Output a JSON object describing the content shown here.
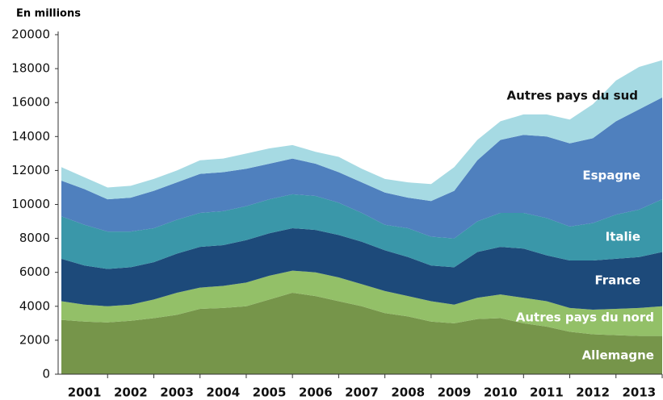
{
  "chart_data": {
    "type": "stacked_area",
    "y_label": "En millions",
    "x": [
      2001,
      2001.5,
      2002,
      2002.5,
      2003,
      2003.5,
      2004,
      2004.5,
      2005,
      2005.5,
      2006,
      2006.5,
      2007,
      2007.5,
      2008,
      2008.5,
      2009,
      2009.5,
      2010,
      2010.5,
      2011,
      2011.5,
      2012,
      2012.5,
      2013,
      2013.5,
      2014
    ],
    "xlim": [
      2001,
      2014
    ],
    "xticks": [
      {
        "value": 2001.5,
        "label": "2001"
      },
      {
        "value": 2002.5,
        "label": "2002"
      },
      {
        "value": 2003.5,
        "label": "2003"
      },
      {
        "value": 2004.5,
        "label": "2004"
      },
      {
        "value": 2005.5,
        "label": "2005"
      },
      {
        "value": 2006.5,
        "label": "2006"
      },
      {
        "value": 2007.5,
        "label": "2007"
      },
      {
        "value": 2008.5,
        "label": "2008"
      },
      {
        "value": 2009.5,
        "label": "2009"
      },
      {
        "value": 2010.5,
        "label": "2010"
      },
      {
        "value": 2011.5,
        "label": "2011"
      },
      {
        "value": 2012.5,
        "label": "2012"
      },
      {
        "value": 2013.5,
        "label": "2013"
      }
    ],
    "ylim": [
      0,
      20000
    ],
    "yticks": [
      0,
      2000,
      4000,
      6000,
      8000,
      10000,
      12000,
      14000,
      16000,
      18000,
      20000
    ],
    "series": [
      {
        "name": "Allemagne",
        "color": "#76954a",
        "values": [
          3200,
          3100,
          3050,
          3150,
          3300,
          3500,
          3850,
          3900,
          4000,
          4400,
          4800,
          4600,
          4300,
          4000,
          3600,
          3400,
          3100,
          3000,
          3250,
          3300,
          3000,
          2800,
          2500,
          2350,
          2300,
          2250,
          2250
        ]
      },
      {
        "name": "Autres pays du nord",
        "color": "#93c068",
        "values": [
          1100,
          1000,
          950,
          950,
          1100,
          1300,
          1250,
          1300,
          1400,
          1400,
          1300,
          1400,
          1400,
          1300,
          1300,
          1200,
          1200,
          1100,
          1250,
          1400,
          1500,
          1500,
          1400,
          1450,
          1550,
          1650,
          1750
        ]
      },
      {
        "name": "France",
        "color": "#1d4a7a",
        "values": [
          2500,
          2300,
          2200,
          2200,
          2200,
          2300,
          2400,
          2400,
          2500,
          2500,
          2500,
          2500,
          2500,
          2500,
          2400,
          2300,
          2100,
          2200,
          2700,
          2800,
          2900,
          2700,
          2800,
          2900,
          2950,
          3000,
          3200
        ]
      },
      {
        "name": "Italie",
        "color": "#3a97a9",
        "values": [
          2500,
          2400,
          2200,
          2100,
          2000,
          2000,
          2000,
          2000,
          2000,
          2000,
          2000,
          2000,
          1900,
          1700,
          1500,
          1700,
          1700,
          1700,
          1800,
          2000,
          2100,
          2200,
          2000,
          2200,
          2600,
          2800,
          3100
        ]
      },
      {
        "name": "Espagne",
        "color": "#4f80be",
        "values": [
          2100,
          2100,
          1900,
          2000,
          2200,
          2200,
          2300,
          2300,
          2200,
          2100,
          2100,
          1900,
          1800,
          1800,
          1900,
          1800,
          2100,
          2800,
          3600,
          4300,
          4600,
          4800,
          4900,
          5000,
          5500,
          5900,
          6000
        ]
      },
      {
        "name": "Autres pays du sud",
        "color": "#a6dae3",
        "values": [
          800,
          700,
          700,
          700,
          700,
          700,
          800,
          800,
          900,
          900,
          800,
          700,
          900,
          800,
          800,
          900,
          1000,
          1400,
          1200,
          1100,
          1200,
          1300,
          1400,
          2000,
          2400,
          2500,
          2200
        ]
      }
    ]
  }
}
